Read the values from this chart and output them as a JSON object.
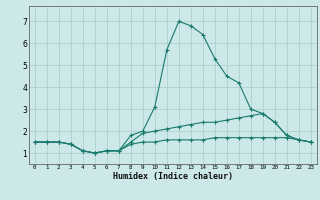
{
  "xlabel": "Humidex (Indice chaleur)",
  "background_color": "#cce8e8",
  "grid_color": "#aacccc",
  "line_color": "#1a7a6e",
  "xlim": [
    -0.5,
    23.5
  ],
  "ylim": [
    0.5,
    7.7
  ],
  "xticks": [
    0,
    1,
    2,
    3,
    4,
    5,
    6,
    7,
    8,
    9,
    10,
    11,
    12,
    13,
    14,
    15,
    16,
    17,
    18,
    19,
    20,
    21,
    22,
    23
  ],
  "yticks": [
    1,
    2,
    3,
    4,
    5,
    6,
    7
  ],
  "series": [
    {
      "x": [
        0,
        1,
        2,
        3,
        4,
        5,
        6,
        7,
        8,
        9,
        10,
        11,
        12,
        13,
        14,
        15,
        16,
        17,
        18,
        19,
        20,
        21,
        22,
        23
      ],
      "y": [
        1.5,
        1.5,
        1.5,
        1.4,
        1.1,
        1.0,
        1.1,
        1.1,
        1.8,
        2.0,
        3.1,
        5.7,
        7.0,
        6.8,
        6.4,
        5.3,
        4.5,
        4.2,
        3.0,
        2.8,
        2.4,
        1.8,
        1.6,
        1.5
      ]
    },
    {
      "x": [
        0,
        1,
        2,
        3,
        4,
        5,
        6,
        7,
        8,
        9,
        10,
        11,
        12,
        13,
        14,
        15,
        16,
        17,
        18,
        19,
        20,
        21,
        22,
        23
      ],
      "y": [
        1.5,
        1.5,
        1.5,
        1.4,
        1.1,
        1.0,
        1.1,
        1.1,
        1.5,
        1.9,
        2.0,
        2.1,
        2.2,
        2.3,
        2.4,
        2.4,
        2.5,
        2.6,
        2.7,
        2.8,
        2.4,
        1.8,
        1.6,
        1.5
      ]
    },
    {
      "x": [
        0,
        1,
        2,
        3,
        4,
        5,
        6,
        7,
        8,
        9,
        10,
        11,
        12,
        13,
        14,
        15,
        16,
        17,
        18,
        19,
        20,
        21,
        22,
        23
      ],
      "y": [
        1.5,
        1.5,
        1.5,
        1.4,
        1.1,
        1.0,
        1.1,
        1.1,
        1.4,
        1.5,
        1.5,
        1.6,
        1.6,
        1.6,
        1.6,
        1.7,
        1.7,
        1.7,
        1.7,
        1.7,
        1.7,
        1.7,
        1.6,
        1.5
      ]
    }
  ]
}
